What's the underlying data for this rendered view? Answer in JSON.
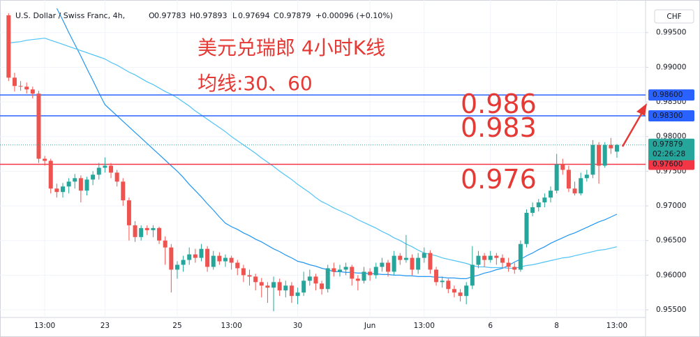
{
  "header": {
    "symbol": "U.S. Dollar / Swiss Franc, 4h,",
    "ohlc": [
      {
        "label": "O",
        "value": 0.97783
      },
      {
        "label": "H",
        "value": 0.97893
      },
      {
        "label": "L",
        "value": 0.97694
      },
      {
        "label": "C",
        "value": 0.97879
      }
    ],
    "change": "+0.00096 (+0.10%)",
    "currency": "CHF"
  },
  "annotations": {
    "title": "美元兑瑞郎 4小时K线",
    "subtitle": "均线:30、60",
    "levels": [
      "0.986",
      "0.983",
      "0.976"
    ]
  },
  "chart_data": {
    "type": "candlestick",
    "up_color": "#26a69a",
    "down_color": "#ef5350",
    "ylim": [
      0.9539,
      0.9989
    ],
    "yticks": [
      {
        "value": 0.995,
        "label": "0.99500"
      },
      {
        "value": 0.99,
        "label": "0.99000"
      },
      {
        "value": 0.985,
        "label": "0.98500"
      },
      {
        "value": 0.98,
        "label": "0.98000"
      },
      {
        "value": 0.975,
        "label": "0.97500"
      },
      {
        "value": 0.97,
        "label": "0.97000"
      },
      {
        "value": 0.965,
        "label": "0.96500"
      },
      {
        "value": 0.96,
        "label": "0.96000"
      },
      {
        "value": 0.955,
        "label": "0.95500"
      }
    ],
    "hlines": [
      {
        "value": 0.986,
        "label": "0.98600",
        "color": "#2962ff"
      },
      {
        "value": 0.983,
        "label": "0.98300",
        "color": "#2962ff"
      },
      {
        "value": 0.976,
        "label": "0.97600",
        "color": "#f23645"
      }
    ],
    "price_line": {
      "value": 0.97879,
      "countdown": "02:26:28"
    },
    "categories": [
      null,
      null,
      null,
      null,
      null,
      null,
      "13:00",
      null,
      null,
      null,
      null,
      null,
      null,
      null,
      null,
      null,
      "23",
      null,
      null,
      null,
      null,
      null,
      null,
      null,
      null,
      null,
      null,
      null,
      "25",
      null,
      null,
      null,
      null,
      null,
      null,
      null,
      null,
      "13:00",
      null,
      null,
      null,
      null,
      null,
      null,
      null,
      null,
      null,
      null,
      "30",
      null,
      null,
      null,
      null,
      null,
      null,
      null,
      null,
      null,
      null,
      null,
      "Jun",
      null,
      null,
      null,
      null,
      null,
      null,
      null,
      null,
      "13:00",
      null,
      null,
      null,
      null,
      null,
      null,
      null,
      null,
      null,
      null,
      "6",
      null,
      null,
      null,
      null,
      null,
      null,
      null,
      null,
      null,
      null,
      "8",
      null,
      null,
      null,
      null,
      null,
      null,
      null,
      null,
      null,
      "13:00"
    ],
    "candles": [
      {
        "o": 0.9975,
        "h": 0.9978,
        "l": 0.988,
        "c": 0.9885
      },
      {
        "o": 0.9885,
        "h": 0.9892,
        "l": 0.9865,
        "c": 0.9873
      },
      {
        "o": 0.9873,
        "h": 0.988,
        "l": 0.9866,
        "c": 0.9872
      },
      {
        "o": 0.9872,
        "h": 0.9878,
        "l": 0.9862,
        "c": 0.9868
      },
      {
        "o": 0.9868,
        "h": 0.9872,
        "l": 0.9855,
        "c": 0.9862
      },
      {
        "o": 0.9862,
        "h": 0.9866,
        "l": 0.9762,
        "c": 0.9768
      },
      {
        "o": 0.9768,
        "h": 0.9772,
        "l": 0.9758,
        "c": 0.9765
      },
      {
        "o": 0.9765,
        "h": 0.9768,
        "l": 0.9718,
        "c": 0.9725
      },
      {
        "o": 0.9725,
        "h": 0.9732,
        "l": 0.9712,
        "c": 0.972
      },
      {
        "o": 0.972,
        "h": 0.9733,
        "l": 0.9712,
        "c": 0.9728
      },
      {
        "o": 0.9728,
        "h": 0.974,
        "l": 0.9718,
        "c": 0.9735
      },
      {
        "o": 0.9735,
        "h": 0.9746,
        "l": 0.9725,
        "c": 0.974
      },
      {
        "o": 0.974,
        "h": 0.9744,
        "l": 0.9705,
        "c": 0.9722
      },
      {
        "o": 0.9722,
        "h": 0.9742,
        "l": 0.9715,
        "c": 0.9738
      },
      {
        "o": 0.9738,
        "h": 0.975,
        "l": 0.973,
        "c": 0.9745
      },
      {
        "o": 0.9745,
        "h": 0.9762,
        "l": 0.9738,
        "c": 0.9755
      },
      {
        "o": 0.9755,
        "h": 0.977,
        "l": 0.9748,
        "c": 0.9758
      },
      {
        "o": 0.9758,
        "h": 0.9762,
        "l": 0.974,
        "c": 0.9748
      },
      {
        "o": 0.9748,
        "h": 0.9752,
        "l": 0.9728,
        "c": 0.9735
      },
      {
        "o": 0.9735,
        "h": 0.974,
        "l": 0.97,
        "c": 0.9708
      },
      {
        "o": 0.9708,
        "h": 0.9712,
        "l": 0.965,
        "c": 0.9672
      },
      {
        "o": 0.9672,
        "h": 0.9678,
        "l": 0.9648,
        "c": 0.9655
      },
      {
        "o": 0.9655,
        "h": 0.9672,
        "l": 0.965,
        "c": 0.9668
      },
      {
        "o": 0.9668,
        "h": 0.9672,
        "l": 0.9658,
        "c": 0.9665
      },
      {
        "o": 0.9665,
        "h": 0.9672,
        "l": 0.9655,
        "c": 0.9668
      },
      {
        "o": 0.9668,
        "h": 0.967,
        "l": 0.9645,
        "c": 0.965
      },
      {
        "o": 0.965,
        "h": 0.9656,
        "l": 0.9615,
        "c": 0.964
      },
      {
        "o": 0.964,
        "h": 0.9645,
        "l": 0.9575,
        "c": 0.9608
      },
      {
        "o": 0.9608,
        "h": 0.962,
        "l": 0.9595,
        "c": 0.9615
      },
      {
        "o": 0.9615,
        "h": 0.9628,
        "l": 0.9605,
        "c": 0.9622
      },
      {
        "o": 0.9622,
        "h": 0.964,
        "l": 0.9615,
        "c": 0.963
      },
      {
        "o": 0.963,
        "h": 0.9638,
        "l": 0.9618,
        "c": 0.9625
      },
      {
        "o": 0.9625,
        "h": 0.9645,
        "l": 0.962,
        "c": 0.9638
      },
      {
        "o": 0.9638,
        "h": 0.9642,
        "l": 0.9605,
        "c": 0.9612
      },
      {
        "o": 0.9612,
        "h": 0.9635,
        "l": 0.9608,
        "c": 0.9628
      },
      {
        "o": 0.9628,
        "h": 0.9633,
        "l": 0.9615,
        "c": 0.962
      },
      {
        "o": 0.962,
        "h": 0.963,
        "l": 0.9612,
        "c": 0.9625
      },
      {
        "o": 0.9625,
        "h": 0.9628,
        "l": 0.9608,
        "c": 0.9618
      },
      {
        "o": 0.9618,
        "h": 0.9622,
        "l": 0.96,
        "c": 0.961
      },
      {
        "o": 0.961,
        "h": 0.9615,
        "l": 0.959,
        "c": 0.96
      },
      {
        "o": 0.96,
        "h": 0.9608,
        "l": 0.9585,
        "c": 0.9598
      },
      {
        "o": 0.9598,
        "h": 0.9602,
        "l": 0.9578,
        "c": 0.959
      },
      {
        "o": 0.959,
        "h": 0.9596,
        "l": 0.9568,
        "c": 0.9585
      },
      {
        "o": 0.9585,
        "h": 0.959,
        "l": 0.956,
        "c": 0.9582
      },
      {
        "o": 0.9582,
        "h": 0.9598,
        "l": 0.9548,
        "c": 0.959
      },
      {
        "o": 0.959,
        "h": 0.9595,
        "l": 0.957,
        "c": 0.9578
      },
      {
        "o": 0.9578,
        "h": 0.9592,
        "l": 0.9568,
        "c": 0.9585
      },
      {
        "o": 0.9585,
        "h": 0.959,
        "l": 0.956,
        "c": 0.957
      },
      {
        "o": 0.957,
        "h": 0.9582,
        "l": 0.9558,
        "c": 0.9575
      },
      {
        "o": 0.9575,
        "h": 0.9605,
        "l": 0.957,
        "c": 0.9592
      },
      {
        "o": 0.9592,
        "h": 0.9608,
        "l": 0.9585,
        "c": 0.9598
      },
      {
        "o": 0.9598,
        "h": 0.9602,
        "l": 0.9578,
        "c": 0.9588
      },
      {
        "o": 0.9588,
        "h": 0.9592,
        "l": 0.9572,
        "c": 0.958
      },
      {
        "o": 0.958,
        "h": 0.9615,
        "l": 0.9575,
        "c": 0.961
      },
      {
        "o": 0.961,
        "h": 0.9618,
        "l": 0.9598,
        "c": 0.9605
      },
      {
        "o": 0.9605,
        "h": 0.9615,
        "l": 0.9598,
        "c": 0.9608
      },
      {
        "o": 0.9608,
        "h": 0.9618,
        "l": 0.96,
        "c": 0.9612
      },
      {
        "o": 0.9612,
        "h": 0.9615,
        "l": 0.9585,
        "c": 0.9595
      },
      {
        "o": 0.9595,
        "h": 0.96,
        "l": 0.9578,
        "c": 0.9592
      },
      {
        "o": 0.9592,
        "h": 0.9612,
        "l": 0.9588,
        "c": 0.9605
      },
      {
        "o": 0.9605,
        "h": 0.961,
        "l": 0.9592,
        "c": 0.96
      },
      {
        "o": 0.96,
        "h": 0.9618,
        "l": 0.9595,
        "c": 0.9612
      },
      {
        "o": 0.9612,
        "h": 0.9625,
        "l": 0.9605,
        "c": 0.9618
      },
      {
        "o": 0.9618,
        "h": 0.9622,
        "l": 0.9598,
        "c": 0.9605
      },
      {
        "o": 0.9605,
        "h": 0.9635,
        "l": 0.96,
        "c": 0.9628
      },
      {
        "o": 0.9628,
        "h": 0.9632,
        "l": 0.9615,
        "c": 0.9622
      },
      {
        "o": 0.9622,
        "h": 0.9658,
        "l": 0.9618,
        "c": 0.9625
      },
      {
        "o": 0.9625,
        "h": 0.963,
        "l": 0.96,
        "c": 0.9608
      },
      {
        "o": 0.9608,
        "h": 0.9632,
        "l": 0.9602,
        "c": 0.9625
      },
      {
        "o": 0.9625,
        "h": 0.964,
        "l": 0.9618,
        "c": 0.9632
      },
      {
        "o": 0.9632,
        "h": 0.9636,
        "l": 0.9602,
        "c": 0.9608
      },
      {
        "o": 0.9608,
        "h": 0.9612,
        "l": 0.9585,
        "c": 0.959
      },
      {
        "o": 0.959,
        "h": 0.9598,
        "l": 0.9582,
        "c": 0.9592
      },
      {
        "o": 0.9592,
        "h": 0.9595,
        "l": 0.9574,
        "c": 0.958
      },
      {
        "o": 0.958,
        "h": 0.9585,
        "l": 0.9568,
        "c": 0.9575
      },
      {
        "o": 0.9575,
        "h": 0.958,
        "l": 0.9562,
        "c": 0.957
      },
      {
        "o": 0.957,
        "h": 0.959,
        "l": 0.9558,
        "c": 0.9585
      },
      {
        "o": 0.9585,
        "h": 0.9642,
        "l": 0.958,
        "c": 0.9615
      },
      {
        "o": 0.9615,
        "h": 0.9635,
        "l": 0.961,
        "c": 0.9628
      },
      {
        "o": 0.9628,
        "h": 0.9632,
        "l": 0.9612,
        "c": 0.9622
      },
      {
        "o": 0.9622,
        "h": 0.9635,
        "l": 0.9618,
        "c": 0.9628
      },
      {
        "o": 0.9628,
        "h": 0.9632,
        "l": 0.9615,
        "c": 0.9625
      },
      {
        "o": 0.9625,
        "h": 0.963,
        "l": 0.961,
        "c": 0.9618
      },
      {
        "o": 0.9618,
        "h": 0.9625,
        "l": 0.9605,
        "c": 0.9612
      },
      {
        "o": 0.9612,
        "h": 0.9618,
        "l": 0.9602,
        "c": 0.9608
      },
      {
        "o": 0.9608,
        "h": 0.965,
        "l": 0.9605,
        "c": 0.9645
      },
      {
        "o": 0.9645,
        "h": 0.9695,
        "l": 0.964,
        "c": 0.969
      },
      {
        "o": 0.969,
        "h": 0.9705,
        "l": 0.9685,
        "c": 0.9698
      },
      {
        "o": 0.9698,
        "h": 0.971,
        "l": 0.9692,
        "c": 0.9705
      },
      {
        "o": 0.9705,
        "h": 0.9718,
        "l": 0.9698,
        "c": 0.9712
      },
      {
        "o": 0.9712,
        "h": 0.9728,
        "l": 0.9705,
        "c": 0.9722
      },
      {
        "o": 0.9722,
        "h": 0.9775,
        "l": 0.9718,
        "c": 0.976
      },
      {
        "o": 0.976,
        "h": 0.9768,
        "l": 0.9745,
        "c": 0.9752
      },
      {
        "o": 0.9752,
        "h": 0.9758,
        "l": 0.972,
        "c": 0.9725
      },
      {
        "o": 0.9725,
        "h": 0.9735,
        "l": 0.9715,
        "c": 0.9718
      },
      {
        "o": 0.9718,
        "h": 0.9748,
        "l": 0.9715,
        "c": 0.974
      },
      {
        "o": 0.974,
        "h": 0.9752,
        "l": 0.9735,
        "c": 0.9745
      },
      {
        "o": 0.9745,
        "h": 0.9795,
        "l": 0.974,
        "c": 0.9788
      },
      {
        "o": 0.9788,
        "h": 0.9792,
        "l": 0.9732,
        "c": 0.9758
      },
      {
        "o": 0.9758,
        "h": 0.9792,
        "l": 0.9755,
        "c": 0.9788
      },
      {
        "o": 0.9788,
        "h": 0.9798,
        "l": 0.9775,
        "c": 0.9783
      },
      {
        "o": 0.97783,
        "h": 0.97893,
        "l": 0.97694,
        "c": 0.97879
      }
    ],
    "series": [
      {
        "color": "#2196f3",
        "values": [
          null,
          null,
          null,
          null,
          null,
          null,
          null,
          null,
          0.9985,
          0.9968,
          0.995,
          0.9933,
          0.9916,
          0.9898,
          0.9881,
          0.9863,
          0.9846,
          0.9838,
          0.983,
          0.9822,
          0.9814,
          0.9806,
          0.9798,
          0.979,
          0.9782,
          0.9774,
          0.9766,
          0.9758,
          0.975,
          0.9741,
          0.9731,
          0.9722,
          0.9713,
          0.9703,
          0.9694,
          0.9684,
          0.9675,
          0.967,
          0.9666,
          0.9661,
          0.9657,
          0.9652,
          0.9648,
          0.9643,
          0.9638,
          0.9634,
          0.9629,
          0.9625,
          0.962,
          0.9618,
          0.9615,
          0.9613,
          0.961,
          0.9608,
          0.9605,
          0.9605,
          0.9604,
          0.9604,
          0.9603,
          0.9603,
          0.9602,
          0.9602,
          0.9601,
          0.9601,
          0.96,
          0.96,
          0.9599,
          0.9599,
          0.9598,
          0.9598,
          0.9598,
          0.9597,
          0.9597,
          0.9596,
          0.9596,
          0.9595,
          0.9595,
          0.9598,
          0.96,
          0.9603,
          0.9605,
          0.9608,
          0.961,
          0.9614,
          0.9619,
          0.9623,
          0.9628,
          0.9632,
          0.9637,
          0.9641,
          0.9646,
          0.965,
          0.9654,
          0.9658,
          0.9661,
          0.9665,
          0.9669,
          0.9673,
          0.9677,
          0.968,
          0.9684,
          0.9688
        ]
      },
      {
        "color": "#4fc3f7",
        "values": [
          0.9935,
          0.9936,
          0.9937,
          0.9939,
          0.994,
          0.9941,
          0.9942,
          0.9939,
          0.9936,
          0.9933,
          0.993,
          0.9927,
          0.9924,
          0.9921,
          0.9918,
          0.9915,
          0.9912,
          0.9907,
          0.9903,
          0.9898,
          0.9893,
          0.9889,
          0.9884,
          0.9879,
          0.9875,
          0.987,
          0.9865,
          0.9861,
          0.9856,
          0.985,
          0.9844,
          0.9837,
          0.9831,
          0.9825,
          0.9819,
          0.9813,
          0.9807,
          0.98,
          0.9794,
          0.9788,
          0.9782,
          0.9776,
          0.9769,
          0.9763,
          0.9757,
          0.975,
          0.9744,
          0.9738,
          0.9731,
          0.9725,
          0.9719,
          0.9712,
          0.9706,
          0.9702,
          0.9697,
          0.9693,
          0.9689,
          0.9685,
          0.968,
          0.9676,
          0.9672,
          0.9668,
          0.9663,
          0.9659,
          0.9654,
          0.965,
          0.9645,
          0.9641,
          0.9636,
          0.9632,
          0.963,
          0.9628,
          0.9625,
          0.9623,
          0.9621,
          0.9619,
          0.9617,
          0.9614,
          0.9612,
          0.9612,
          0.9611,
          0.9611,
          0.9611,
          0.961,
          0.961,
          0.9612,
          0.9614,
          0.9615,
          0.9617,
          0.9619,
          0.9621,
          0.9623,
          0.9625,
          0.9626,
          0.9628,
          0.963,
          0.9632,
          0.9634,
          0.9636,
          0.9637,
          0.9639,
          0.9641
        ]
      }
    ]
  }
}
